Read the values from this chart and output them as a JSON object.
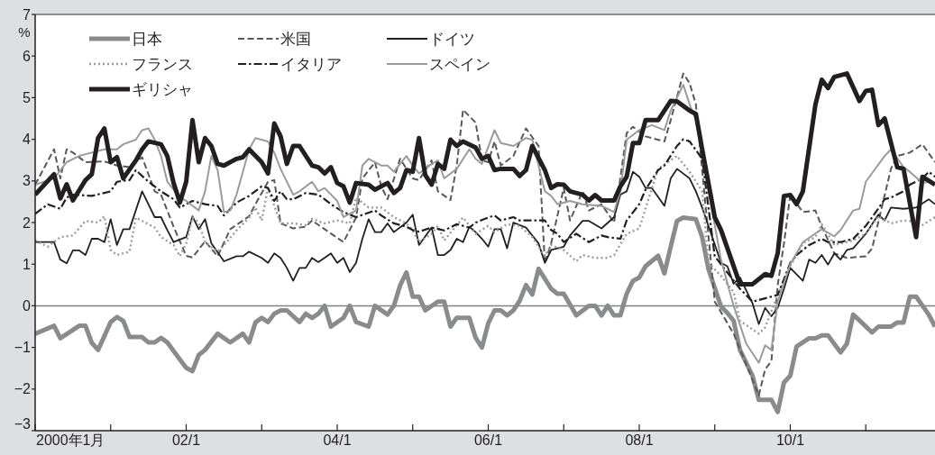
{
  "chart_data": {
    "type": "line",
    "ylabel": "%",
    "xlim": [
      "2000-01",
      "2011-12"
    ],
    "ylim": [
      -3,
      7
    ],
    "xticks": [
      {
        "value": "2000-01",
        "label": "2000年1月"
      },
      {
        "value": "2001-01",
        "label": null
      },
      {
        "value": "2002-01",
        "label": "02/1"
      },
      {
        "value": "2003-01",
        "label": null
      },
      {
        "value": "2004-01",
        "label": "04/1"
      },
      {
        "value": "2005-01",
        "label": null
      },
      {
        "value": "2006-01",
        "label": "06/1"
      },
      {
        "value": "2007-01",
        "label": null
      },
      {
        "value": "2008-01",
        "label": "08/1"
      },
      {
        "value": "2009-01",
        "label": null
      },
      {
        "value": "2010-01",
        "label": "10/1"
      },
      {
        "value": "2011-01",
        "label": null
      }
    ],
    "yticks": [
      -3,
      -2,
      -1,
      0,
      1,
      2,
      3,
      4,
      5,
      6,
      7
    ],
    "legend": "top left",
    "ref_lines": [
      {
        "axis": "y",
        "value": 0,
        "color": "#808080"
      }
    ],
    "series": [
      {
        "name": "日本",
        "color": "#8a8b8d",
        "line_style": "solid",
        "x": [
          "2000-01",
          "2000-04",
          "2000-05",
          "2000-08",
          "2000-09",
          "2000-10",
          "2000-11",
          "2001-01",
          "2001-02",
          "2001-03",
          "2001-04",
          "2001-06",
          "2001-07",
          "2001-08",
          "2001-09",
          "2001-10",
          "2001-12",
          "2002-01",
          "2002-02",
          "2002-03",
          "2002-04",
          "2002-06",
          "2002-08",
          "2002-10",
          "2002-11",
          "2002-12",
          "2003-01",
          "2003-02",
          "2003-03",
          "2003-04",
          "2003-05",
          "2003-07",
          "2003-08",
          "2003-09",
          "2003-10",
          "2003-11",
          "2003-12",
          "2004-02",
          "2004-03",
          "2004-04",
          "2004-06",
          "2004-07",
          "2004-09",
          "2004-10",
          "2004-11",
          "2004-12",
          "2005-01",
          "2005-02",
          "2005-03",
          "2005-05",
          "2005-06",
          "2005-07",
          "2005-08",
          "2005-10",
          "2005-11",
          "2005-12",
          "2006-01",
          "2006-02",
          "2006-03",
          "2006-04",
          "2006-05",
          "2006-06",
          "2006-07",
          "2006-08",
          "2006-09",
          "2006-11",
          "2006-12",
          "2007-01",
          "2007-03",
          "2007-05",
          "2007-06",
          "2007-07",
          "2007-08",
          "2007-09",
          "2007-10",
          "2007-11",
          "2007-12",
          "2008-01",
          "2008-02",
          "2008-04",
          "2008-05",
          "2008-06",
          "2008-07",
          "2008-08",
          "2008-10",
          "2008-11",
          "2008-12",
          "2009-02",
          "2009-03",
          "2009-04",
          "2009-05",
          "2009-07",
          "2009-08",
          "2009-10",
          "2009-11",
          "2009-12",
          "2010-01",
          "2010-02",
          "2010-04",
          "2010-05",
          "2010-06",
          "2010-07",
          "2010-09",
          "2010-10",
          "2010-11",
          "2010-12",
          "2011-02",
          "2011-03",
          "2011-05",
          "2011-06",
          "2011-07",
          "2011-08",
          "2011-09",
          "2011-11",
          "2011-12"
        ],
        "values": [
          -0.67,
          -0.48,
          -0.78,
          -0.48,
          -0.48,
          -0.89,
          -1.06,
          -0.39,
          -0.27,
          -0.36,
          -0.75,
          -0.75,
          -0.88,
          -0.88,
          -0.77,
          -0.88,
          -1.29,
          -1.49,
          -1.57,
          -1.18,
          -1.06,
          -0.67,
          -0.88,
          -0.67,
          -0.88,
          -0.4,
          -0.29,
          -0.39,
          -0.19,
          -0.11,
          -0.11,
          -0.39,
          -0.19,
          -0.29,
          -0.19,
          0.0,
          -0.5,
          -0.29,
          0.0,
          -0.39,
          -0.5,
          0.0,
          -0.21,
          0.0,
          0.49,
          0.8,
          0.22,
          0.22,
          -0.11,
          0.1,
          0.1,
          -0.5,
          -0.29,
          -0.29,
          -0.77,
          -1.0,
          -0.42,
          -0.11,
          -0.11,
          -0.23,
          -0.11,
          0.12,
          0.5,
          0.27,
          0.89,
          0.41,
          0.29,
          0.29,
          -0.23,
          0.0,
          0.0,
          -0.23,
          0.0,
          -0.23,
          -0.23,
          0.29,
          0.6,
          0.68,
          0.95,
          1.2,
          0.78,
          1.42,
          2.04,
          2.12,
          2.08,
          1.65,
          0.88,
          -0.02,
          -0.17,
          -0.36,
          -1.06,
          -1.68,
          -2.26,
          -2.26,
          -2.55,
          -1.84,
          -1.68,
          -0.98,
          -0.78,
          -0.78,
          -0.71,
          -0.71,
          -1.12,
          -0.91,
          -0.21,
          -0.35,
          -0.64,
          -0.5,
          -0.5,
          -0.4,
          -0.4,
          0.22,
          0.22,
          -0.21,
          -0.5
        ]
      },
      {
        "name": "米国",
        "color": "#58595b",
        "line_style": "dashed",
        "x": [
          "2000-01",
          "2000-04",
          "2000-05",
          "2000-06",
          "2000-07",
          "2000-09",
          "2000-12",
          "2001-02",
          "2001-04",
          "2001-06",
          "2001-08",
          "2001-09",
          "2001-11",
          "2002-01",
          "2002-02",
          "2002-04",
          "2002-06",
          "2002-08",
          "2002-11",
          "2002-12",
          "2003-02",
          "2003-03",
          "2003-04",
          "2003-06",
          "2003-08",
          "2003-09",
          "2003-11",
          "2004-02",
          "2004-04",
          "2004-05",
          "2004-07",
          "2004-08",
          "2004-09",
          "2004-11",
          "2005-01",
          "2005-02",
          "2005-04",
          "2005-05",
          "2005-07",
          "2005-08",
          "2005-09",
          "2005-11",
          "2005-12",
          "2006-01",
          "2006-02",
          "2006-03",
          "2006-05",
          "2006-07",
          "2006-09",
          "2006-10",
          "2006-11",
          "2007-01",
          "2007-02",
          "2007-04",
          "2007-05",
          "2007-07",
          "2007-09",
          "2007-11",
          "2007-12",
          "2008-02",
          "2008-05",
          "2008-06",
          "2008-08",
          "2008-09",
          "2008-10",
          "2009-01",
          "2009-04",
          "2009-08",
          "2009-09",
          "2009-10",
          "2009-11",
          "2009-12",
          "2010-01",
          "2010-03",
          "2010-05",
          "2010-06",
          "2010-08",
          "2010-10",
          "2011-01",
          "2011-02",
          "2011-05",
          "2011-06",
          "2011-08",
          "2011-10",
          "2011-12"
        ],
        "values": [
          2.91,
          3.76,
          3.06,
          3.76,
          3.68,
          3.45,
          3.47,
          3.37,
          3.33,
          3.57,
          2.75,
          2.67,
          1.9,
          1.2,
          1.16,
          1.55,
          1.19,
          1.84,
          2.15,
          2.44,
          2.98,
          3.02,
          1.98,
          1.86,
          1.9,
          2.05,
          1.84,
          1.53,
          2.12,
          3.06,
          3.45,
          2.87,
          2.56,
          3.53,
          3.06,
          3.02,
          3.49,
          2.75,
          2.54,
          3.37,
          4.71,
          4.4,
          3.49,
          3.45,
          3.95,
          3.37,
          3.6,
          4.26,
          3.84,
          1.03,
          1.5,
          2.83,
          2.05,
          2.75,
          2.29,
          2.44,
          2.0,
          4.15,
          4.3,
          4.07,
          3.95,
          4.46,
          5.58,
          5.35,
          4.84,
          0.1,
          -0.67,
          -2.15,
          -1.53,
          -1.33,
          0.49,
          1.5,
          2.67,
          2.25,
          2.29,
          1.9,
          1.26,
          1.15,
          1.19,
          1.38,
          3.29,
          3.6,
          3.68,
          3.88,
          3.45
        ]
      },
      {
        "name": "ドイツ",
        "color": "#231f20",
        "line_style": "solid",
        "x": [
          "2000-01",
          "2000-04",
          "2000-05",
          "2000-06",
          "2000-07",
          "2000-08",
          "2000-09",
          "2000-10",
          "2000-11",
          "2000-12",
          "2001-01",
          "2001-02",
          "2001-03",
          "2001-04",
          "2001-06",
          "2001-08",
          "2001-09",
          "2001-10",
          "2001-11",
          "2002-01",
          "2002-02",
          "2002-03",
          "2002-04",
          "2002-05",
          "2002-07",
          "2002-09",
          "2002-10",
          "2002-11",
          "2003-01",
          "2003-02",
          "2003-03",
          "2003-04",
          "2003-05",
          "2003-06",
          "2003-07",
          "2003-08",
          "2003-09",
          "2003-10",
          "2003-12",
          "2004-01",
          "2004-02",
          "2004-03",
          "2004-04",
          "2004-05",
          "2004-06",
          "2004-07",
          "2004-08",
          "2004-09",
          "2004-10",
          "2004-12",
          "2005-01",
          "2005-02",
          "2005-04",
          "2005-05",
          "2005-06",
          "2005-07",
          "2005-08",
          "2005-09",
          "2005-10",
          "2005-11",
          "2005-12",
          "2006-01",
          "2006-02",
          "2006-03",
          "2006-04",
          "2006-05",
          "2006-07",
          "2006-09",
          "2006-10",
          "2006-11",
          "2007-01",
          "2007-02",
          "2007-04",
          "2007-05",
          "2007-07",
          "2007-09",
          "2007-10",
          "2007-11",
          "2007-12",
          "2008-01",
          "2008-02",
          "2008-03",
          "2008-05",
          "2008-06",
          "2008-07",
          "2008-09",
          "2008-10",
          "2008-11",
          "2009-02",
          "2009-03",
          "2009-04",
          "2009-05",
          "2009-07",
          "2009-08",
          "2009-09",
          "2009-10",
          "2009-11",
          "2009-12",
          "2010-01",
          "2010-03",
          "2010-04",
          "2010-05",
          "2010-06",
          "2010-07",
          "2010-08",
          "2010-09",
          "2010-10",
          "2010-11",
          "2011-01",
          "2011-02",
          "2011-03",
          "2011-04",
          "2011-05",
          "2011-07",
          "2011-09",
          "2011-11",
          "2011-12"
        ],
        "values": [
          1.53,
          1.53,
          1.11,
          1.02,
          1.33,
          1.33,
          1.22,
          1.61,
          1.61,
          1.53,
          2.08,
          1.46,
          1.84,
          1.84,
          2.75,
          2.13,
          2.13,
          1.82,
          1.53,
          1.65,
          2.15,
          1.84,
          2.08,
          1.5,
          1.07,
          1.19,
          1.19,
          1.3,
          1.15,
          1.03,
          1.26,
          1.15,
          0.91,
          0.6,
          0.91,
          0.91,
          1.15,
          1.05,
          1.26,
          1.03,
          1.15,
          0.81,
          1.03,
          1.61,
          2.08,
          1.77,
          1.77,
          1.98,
          1.77,
          2.0,
          2.19,
          1.46,
          1.88,
          1.22,
          1.22,
          1.34,
          1.61,
          1.53,
          1.9,
          1.77,
          1.61,
          1.42,
          1.84,
          1.84,
          1.38,
          2.0,
          1.88,
          1.5,
          1.03,
          1.34,
          1.42,
          1.69,
          2.04,
          2.04,
          1.86,
          2.13,
          2.67,
          2.75,
          3.22,
          3.1,
          2.83,
          2.83,
          2.4,
          3.06,
          3.29,
          3.06,
          2.75,
          2.36,
          1.03,
          0.95,
          0.53,
          0.68,
          0.06,
          -0.44,
          -0.05,
          -0.25,
          -0.05,
          0.41,
          0.91,
          0.6,
          1.11,
          1.03,
          1.22,
          0.99,
          1.26,
          1.11,
          1.34,
          1.38,
          1.73,
          1.96,
          2.19,
          2.05,
          2.36,
          2.33,
          2.36,
          2.56,
          2.44
        ]
      },
      {
        "name": "フランス",
        "color": "#9a9b9d",
        "line_style": "dotted",
        "x": [
          "2000-01",
          "2000-03",
          "2000-05",
          "2000-07",
          "2000-09",
          "2000-11",
          "2000-12",
          "2001-01",
          "2001-02",
          "2001-04",
          "2001-05",
          "2001-08",
          "2001-09",
          "2001-11",
          "2001-12",
          "2002-01",
          "2002-02",
          "2002-03",
          "2002-04",
          "2002-06",
          "2002-07",
          "2002-09",
          "2002-11",
          "2002-12",
          "2003-01",
          "2003-02",
          "2003-04",
          "2003-06",
          "2003-08",
          "2003-09",
          "2003-11",
          "2004-01",
          "2004-03",
          "2004-04",
          "2004-06",
          "2004-08",
          "2004-10",
          "2004-12",
          "2005-01",
          "2005-02",
          "2005-04",
          "2005-05",
          "2005-06",
          "2005-09",
          "2005-11",
          "2006-01",
          "2006-02",
          "2006-04",
          "2006-06",
          "2006-08",
          "2006-10",
          "2006-11",
          "2007-01",
          "2007-03",
          "2007-04",
          "2007-06",
          "2007-08",
          "2007-09",
          "2007-11",
          "2008-01",
          "2008-04",
          "2008-07",
          "2008-09",
          "2008-11",
          "2008-12",
          "2009-02",
          "2009-04",
          "2009-05",
          "2009-08",
          "2009-09",
          "2009-11",
          "2010-01",
          "2010-03",
          "2010-05",
          "2010-06",
          "2010-08",
          "2010-11",
          "2011-01",
          "2011-03",
          "2011-05",
          "2011-07",
          "2011-09",
          "2011-10",
          "2011-12"
        ],
        "values": [
          1.57,
          1.42,
          1.65,
          1.69,
          2.04,
          2.0,
          2.15,
          1.34,
          1.22,
          1.3,
          2.12,
          1.88,
          1.65,
          1.46,
          1.19,
          1.5,
          2.12,
          2.0,
          1.53,
          1.3,
          1.46,
          1.81,
          2.12,
          2.36,
          2.05,
          2.83,
          1.98,
          1.98,
          1.94,
          2.09,
          1.98,
          2.05,
          1.98,
          2.6,
          2.36,
          2.36,
          2.13,
          1.98,
          1.81,
          1.53,
          1.73,
          1.92,
          1.57,
          2.12,
          1.73,
          1.92,
          1.77,
          1.96,
          1.92,
          1.65,
          1.19,
          1.46,
          1.34,
          1.07,
          1.22,
          1.15,
          1.15,
          1.22,
          1.73,
          1.86,
          3.29,
          3.6,
          3.22,
          2.75,
          1.03,
          0.72,
          0.33,
          -0.36,
          -0.67,
          -0.52,
          0.26,
          0.95,
          1.5,
          1.65,
          1.96,
          1.46,
          1.57,
          1.73,
          2.15,
          1.98,
          2.05,
          2.02,
          1.94,
          2.13
        ]
      },
      {
        "name": "イタリア",
        "color": "#231f20",
        "line_style": "dashdot",
        "x": [
          "2000-01",
          "2000-03",
          "2000-05",
          "2000-06",
          "2000-07",
          "2000-10",
          "2001-01",
          "2001-02",
          "2001-04",
          "2001-05",
          "2001-07",
          "2001-09",
          "2001-11",
          "2001-12",
          "2002-02",
          "2002-04",
          "2002-06",
          "2002-07",
          "2002-09",
          "2002-11",
          "2003-01",
          "2003-02",
          "2003-03",
          "2003-04",
          "2003-05",
          "2003-06",
          "2003-08",
          "2003-10",
          "2003-11",
          "2003-12",
          "2004-02",
          "2004-04",
          "2004-07",
          "2004-08",
          "2004-10",
          "2004-12",
          "2005-01",
          "2005-02",
          "2005-04",
          "2005-06",
          "2005-08",
          "2005-10",
          "2005-11",
          "2006-01",
          "2006-02",
          "2006-03",
          "2006-05",
          "2006-06",
          "2006-10",
          "2006-11",
          "2006-12",
          "2007-01",
          "2007-03",
          "2007-05",
          "2007-07",
          "2007-08",
          "2007-10",
          "2007-11",
          "2008-01",
          "2008-02",
          "2008-04",
          "2008-05",
          "2008-07",
          "2008-08",
          "2008-09",
          "2008-11",
          "2009-01",
          "2009-05",
          "2009-07",
          "2009-09",
          "2009-11",
          "2009-12",
          "2010-01",
          "2010-02",
          "2010-04",
          "2010-06",
          "2010-07",
          "2010-09",
          "2010-11",
          "2011-01",
          "2011-02",
          "2011-04",
          "2011-05",
          "2011-07",
          "2011-08",
          "2011-10",
          "2011-11",
          "2011-12"
        ],
        "values": [
          2.21,
          2.44,
          2.33,
          2.6,
          2.67,
          2.64,
          2.75,
          2.98,
          3.02,
          3.26,
          2.98,
          2.75,
          2.56,
          2.36,
          2.52,
          2.44,
          2.4,
          2.17,
          2.48,
          2.64,
          2.87,
          2.83,
          2.52,
          2.75,
          2.56,
          2.56,
          2.71,
          2.67,
          2.56,
          2.44,
          2.25,
          2.13,
          2.29,
          2.17,
          1.98,
          1.9,
          1.82,
          1.78,
          1.88,
          1.81,
          1.96,
          1.88,
          2.0,
          2.12,
          2.17,
          2.05,
          2.13,
          2.05,
          2.05,
          1.82,
          1.73,
          1.53,
          1.73,
          1.53,
          1.69,
          1.65,
          1.61,
          2.05,
          2.44,
          2.79,
          3.26,
          3.37,
          3.84,
          4.0,
          3.95,
          3.53,
          1.19,
          0.41,
          0.1,
          0.18,
          0.26,
          0.64,
          1.03,
          1.22,
          1.46,
          1.61,
          1.53,
          1.53,
          1.61,
          1.92,
          2.12,
          2.56,
          2.6,
          2.75,
          2.91,
          3.06,
          3.22,
          3.1
        ]
      },
      {
        "name": "スペイン",
        "color": "#9a9b9d",
        "line_style": "solid",
        "x": [
          "2000-01",
          "2000-04",
          "2000-06",
          "2000-08",
          "2000-10",
          "2000-12",
          "2001-02",
          "2001-03",
          "2001-05",
          "2001-06",
          "2001-07",
          "2001-08",
          "2001-09",
          "2001-10",
          "2001-12",
          "2002-01",
          "2002-03",
          "2002-04",
          "2002-05",
          "2002-06",
          "2002-07",
          "2002-08",
          "2002-09",
          "2002-11",
          "2002-12",
          "2003-02",
          "2003-03",
          "2003-04",
          "2003-06",
          "2003-07",
          "2003-09",
          "2003-10",
          "2003-11",
          "2004-01",
          "2004-02",
          "2004-04",
          "2004-05",
          "2004-06",
          "2004-08",
          "2004-09",
          "2004-10",
          "2004-12",
          "2005-01",
          "2005-02",
          "2005-04",
          "2005-05",
          "2005-06",
          "2005-08",
          "2005-10",
          "2005-11",
          "2005-12",
          "2006-02",
          "2006-03",
          "2006-05",
          "2006-07",
          "2006-08",
          "2006-10",
          "2006-11",
          "2006-12",
          "2007-02",
          "2007-04",
          "2007-07",
          "2007-09",
          "2007-10",
          "2007-11",
          "2008-01",
          "2008-03",
          "2008-05",
          "2008-06",
          "2008-08",
          "2008-09",
          "2008-10",
          "2009-02",
          "2009-04",
          "2009-06",
          "2009-08",
          "2009-09",
          "2009-10",
          "2009-11",
          "2010-01",
          "2010-03",
          "2010-06",
          "2010-08",
          "2010-09",
          "2010-11",
          "2010-12",
          "2011-01",
          "2011-04",
          "2011-05",
          "2011-07",
          "2011-08",
          "2011-10",
          "2011-11"
        ],
        "values": [
          2.91,
          3.06,
          3.45,
          3.6,
          3.68,
          3.76,
          3.76,
          3.88,
          3.99,
          4.22,
          4.26,
          3.99,
          3.6,
          2.98,
          2.6,
          2.52,
          2.29,
          2.75,
          3.6,
          3.26,
          2.25,
          2.29,
          2.67,
          3.76,
          4.03,
          3.95,
          3.68,
          3.29,
          2.67,
          2.75,
          2.98,
          2.75,
          2.83,
          2.52,
          2.13,
          2.29,
          3.37,
          3.53,
          3.37,
          3.37,
          3.22,
          3.6,
          3.37,
          3.18,
          3.41,
          3.49,
          3.06,
          3.29,
          3.76,
          3.53,
          3.41,
          4.22,
          3.91,
          3.84,
          4.03,
          3.99,
          2.75,
          2.64,
          2.44,
          2.52,
          2.44,
          2.4,
          2.25,
          2.75,
          3.99,
          4.22,
          4.34,
          4.22,
          4.69,
          5.31,
          4.84,
          4.46,
          1.1,
          0.0,
          -0.91,
          -1.37,
          -0.95,
          -1.06,
          0.1,
          1.0,
          1.53,
          1.84,
          1.67,
          1.82,
          2.29,
          2.33,
          2.98,
          3.6,
          3.76,
          3.33,
          3.22,
          2.95,
          2.98
        ]
      },
      {
        "name": "ギリシャ",
        "color": "#231f20",
        "line_style": "solid",
        "x": [
          "2000-01",
          "2000-04",
          "2000-05",
          "2000-06",
          "2000-07",
          "2000-09",
          "2000-10",
          "2000-11",
          "2000-12",
          "2001-01",
          "2001-02",
          "2001-03",
          "2001-05",
          "2001-06",
          "2001-07",
          "2001-09",
          "2001-10",
          "2001-11",
          "2001-12",
          "2002-01",
          "2002-02",
          "2002-03",
          "2002-04",
          "2002-05",
          "2002-06",
          "2002-07",
          "2002-09",
          "2002-10",
          "2002-11",
          "2003-01",
          "2003-02",
          "2003-03",
          "2003-04",
          "2003-05",
          "2003-06",
          "2003-07",
          "2003-09",
          "2003-10",
          "2003-11",
          "2003-12",
          "2004-01",
          "2004-02",
          "2004-03",
          "2004-04",
          "2004-06",
          "2004-07",
          "2004-09",
          "2004-10",
          "2004-11",
          "2004-12",
          "2005-01",
          "2005-02",
          "2005-03",
          "2005-04",
          "2005-05",
          "2005-06",
          "2005-07",
          "2005-08",
          "2005-09",
          "2005-11",
          "2005-12",
          "2006-01",
          "2006-02",
          "2006-03",
          "2006-05",
          "2006-06",
          "2006-07",
          "2006-08",
          "2006-10",
          "2006-11",
          "2006-12",
          "2007-01",
          "2007-02",
          "2007-04",
          "2007-05",
          "2007-06",
          "2007-07",
          "2007-09",
          "2007-10",
          "2007-11",
          "2007-12",
          "2008-01",
          "2008-02",
          "2008-04",
          "2008-06",
          "2008-07",
          "2008-09",
          "2008-10",
          "2008-11",
          "2009-01",
          "2009-02",
          "2009-05",
          "2009-07",
          "2009-09",
          "2009-10",
          "2009-11",
          "2009-12",
          "2010-01",
          "2010-02",
          "2010-03",
          "2010-05",
          "2010-06",
          "2010-07",
          "2010-08",
          "2010-10",
          "2010-12",
          "2011-01",
          "2011-02",
          "2011-03",
          "2011-04",
          "2011-06",
          "2011-07",
          "2011-09",
          "2011-10",
          "2011-12"
        ],
        "values": [
          2.67,
          3.16,
          2.58,
          2.92,
          2.53,
          3.02,
          3.16,
          4.03,
          4.26,
          3.45,
          3.57,
          3.06,
          3.49,
          3.76,
          3.95,
          3.88,
          3.6,
          2.95,
          2.48,
          2.98,
          4.46,
          3.45,
          4.03,
          3.84,
          3.41,
          3.37,
          3.53,
          3.57,
          3.76,
          3.45,
          3.18,
          4.38,
          4.07,
          3.41,
          3.84,
          3.84,
          3.37,
          3.33,
          3.18,
          3.33,
          2.95,
          2.87,
          2.48,
          2.95,
          2.91,
          2.79,
          2.95,
          2.71,
          2.83,
          3.26,
          3.22,
          4.03,
          3.14,
          2.91,
          3.41,
          3.29,
          3.99,
          3.84,
          3.95,
          3.8,
          3.53,
          3.6,
          3.26,
          3.29,
          3.29,
          3.12,
          3.26,
          3.84,
          3.26,
          2.83,
          2.92,
          2.91,
          2.75,
          2.67,
          2.53,
          2.66,
          2.53,
          2.53,
          2.87,
          3.1,
          3.91,
          3.91,
          4.46,
          4.46,
          4.92,
          4.91,
          4.69,
          4.61,
          3.76,
          2.13,
          1.82,
          0.52,
          0.52,
          0.76,
          0.72,
          1.26,
          2.64,
          2.66,
          2.44,
          2.75,
          4.84,
          5.43,
          5.23,
          5.5,
          5.58,
          4.92,
          5.16,
          5.19,
          4.34,
          4.5,
          3.33,
          3.29,
          1.65,
          3.1,
          2.91
        ]
      }
    ]
  }
}
